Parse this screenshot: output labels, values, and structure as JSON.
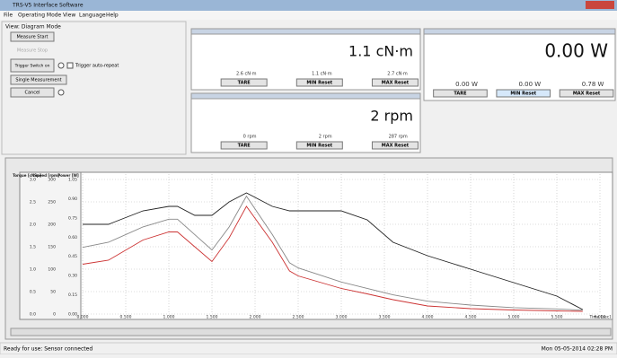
{
  "window": {
    "title": "TRS-V5 Interface Software"
  },
  "menu": [
    "File",
    "Operating Mode",
    "View",
    "Language",
    "Help"
  ],
  "left_panel": {
    "mode": "View: Diagram Mode",
    "measure_start": "Measure Start",
    "measure_stop": "Measure Stop",
    "trigger": "Trigger Switch on",
    "trigger_repeat": "Trigger auto-repeat",
    "single": "Single Measurement",
    "cancel": "Cancel"
  },
  "torque_panel": {
    "value": "1.1 cN·m",
    "min": "2.6 cN·m",
    "current": "1.1 cN·m",
    "max": "2.7 cN·m",
    "tare": "TARE",
    "min_reset": "MIN Reset",
    "max_reset": "MAX Reset"
  },
  "speed_panel": {
    "value": "2 rpm",
    "min": "0 rpm",
    "current": "2 rpm",
    "max": "287 rpm",
    "tare": "TARE",
    "min_reset": "MIN Reset",
    "max_reset": "MAX Reset"
  },
  "power_panel": {
    "value": "0.00 W",
    "min": "0.00 W",
    "current": "0.00 W",
    "max": "0.78 W",
    "tare": "TARE",
    "min_reset": "MIN Reset",
    "max_reset": "MAX Reset"
  },
  "status": {
    "left": "Ready for use: Sensor connected",
    "right": "Mon  05-05-2014  02:28 PM"
  },
  "chart_data": {
    "type": "line",
    "xlabel": "Time [sec]",
    "x": [
      0,
      0.3,
      0.7,
      1.0,
      1.1,
      1.3,
      1.5,
      1.7,
      1.9,
      2.2,
      2.4,
      2.5,
      3.0,
      3.3,
      3.6,
      4.0,
      4.5,
      5.0,
      5.5,
      5.8
    ],
    "series": [
      {
        "name": "Torque [cN·m]",
        "color": "#222222",
        "axis": "y",
        "values": [
          2.0,
          2.0,
          2.3,
          2.4,
          2.4,
          2.2,
          2.2,
          2.5,
          2.7,
          2.4,
          2.3,
          2.3,
          2.3,
          2.1,
          1.6,
          1.3,
          1.0,
          0.7,
          0.4,
          0.1
        ]
      },
      {
        "name": "Speed [rpm]",
        "color": "#cc3333",
        "axis": "y2",
        "values": [
          111,
          120,
          165,
          183,
          183,
          150,
          117,
          170,
          240,
          160,
          96,
          85,
          57,
          45,
          32,
          18,
          12,
          9,
          7,
          6
        ]
      },
      {
        "name": "Power [W]",
        "color": "#888888",
        "axis": "y3",
        "values": [
          0.52,
          0.56,
          0.68,
          0.74,
          0.74,
          0.62,
          0.5,
          0.68,
          0.92,
          0.62,
          0.4,
          0.36,
          0.25,
          0.2,
          0.15,
          0.1,
          0.07,
          0.05,
          0.04,
          0.03
        ]
      }
    ],
    "xlim": [
      0,
      6
    ],
    "xticks": [
      {
        "value": 0,
        "label": "0.000"
      },
      {
        "value": 0.5,
        "label": "0.500"
      },
      {
        "value": 1,
        "label": "1.000"
      },
      {
        "value": 1.5,
        "label": "1.500"
      },
      {
        "value": 2,
        "label": "2.000"
      },
      {
        "value": 2.5,
        "label": "2.500"
      },
      {
        "value": 3,
        "label": "3.000"
      },
      {
        "value": 3.5,
        "label": "3.500"
      },
      {
        "value": 4,
        "label": "4.000"
      },
      {
        "value": 4.5,
        "label": "4.500"
      },
      {
        "value": 5,
        "label": "5.000"
      },
      {
        "value": 5.5,
        "label": "5.500"
      },
      {
        "value": 6,
        "label": "6.000"
      }
    ],
    "ylim": [
      0,
      3
    ],
    "yticks": [
      {
        "value": 0,
        "label": "0.0"
      },
      {
        "value": 0.5,
        "label": "0.5"
      },
      {
        "value": 1,
        "label": "1.0"
      },
      {
        "value": 1.5,
        "label": "1.5"
      },
      {
        "value": 2,
        "label": "2.0"
      },
      {
        "value": 2.5,
        "label": "2.5"
      },
      {
        "value": 3,
        "label": "3.0"
      }
    ],
    "y2lim": [
      0,
      300
    ],
    "y2ticks": [
      0,
      50,
      100,
      150,
      200,
      250,
      300
    ],
    "y3lim": [
      0,
      1.05
    ],
    "y3ticks": [
      {
        "value": 0,
        "label": "0.00"
      },
      {
        "value": 0.15,
        "label": "0.15"
      },
      {
        "value": 0.3,
        "label": "0.30"
      },
      {
        "value": 0.45,
        "label": "0.45"
      },
      {
        "value": 0.6,
        "label": "0.60"
      },
      {
        "value": 0.75,
        "label": "0.75"
      },
      {
        "value": 0.9,
        "label": "0.90"
      },
      {
        "value": 1.05,
        "label": "1.05"
      }
    ],
    "grid": true
  }
}
